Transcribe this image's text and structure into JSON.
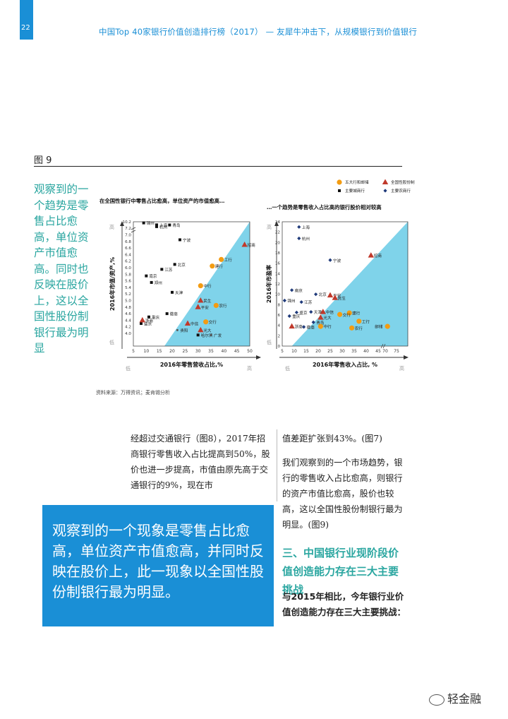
{
  "page": {
    "number": "22",
    "header": "中国Top 40家银行价值创造排行榜（2017） — 友犀牛冲击下，从规模银行到价值银行"
  },
  "figure": {
    "label": "图 9"
  },
  "side_quote": "观察到的一个趋势是零售占比愈高，单位资产市值愈高。同时也反映在股价上，这以全国性股份制银行最为明显",
  "chart_data": [
    {
      "type": "scatter",
      "title": "在全国性银行中零售占比愈高，单位资产的市值愈高…",
      "xlabel": "2016年零售营收占比,%",
      "ylabel": "2016年市值/资产,%",
      "xlim": [
        5,
        50
      ],
      "ylim": [
        3.8,
        10.2
      ],
      "x_ticks": [
        "5",
        "10",
        "15",
        "20",
        "25",
        "30",
        "35",
        "40",
        "45",
        "50"
      ],
      "y_ticks": [
        "4.0",
        "4.2",
        "4.4",
        "4.6",
        "4.8",
        "5.0",
        "5.2",
        "5.4",
        "5.6",
        "5.8",
        "6.0",
        "6.2",
        "6.4",
        "6.6",
        "6.8",
        "7.0",
        "7.2",
        "10.2"
      ],
      "low_label": "低",
      "high_label": "高",
      "points": [
        {
          "name": "锦州",
          "x": 9,
          "y": 10.0,
          "group": "urban"
        },
        {
          "name": "上海",
          "x": 14,
          "y": 9.65,
          "group": "urban"
        },
        {
          "name": "青岛",
          "x": 19,
          "y": 7.3,
          "group": "urban"
        },
        {
          "name": "杭州",
          "x": 14,
          "y": 7.25,
          "group": "urban"
        },
        {
          "name": "宁波",
          "x": 23,
          "y": 6.85,
          "group": "urban"
        },
        {
          "name": "北京",
          "x": 21,
          "y": 6.1,
          "group": "urban"
        },
        {
          "name": "江苏",
          "x": 16,
          "y": 5.95,
          "group": "urban"
        },
        {
          "name": "南京",
          "x": 10,
          "y": 5.75,
          "group": "urban"
        },
        {
          "name": "郑州",
          "x": 12,
          "y": 5.55,
          "group": "urban"
        },
        {
          "name": "天津",
          "x": 20,
          "y": 5.25,
          "group": "urban"
        },
        {
          "name": "徽商",
          "x": 18,
          "y": 4.6,
          "group": "urban"
        },
        {
          "name": "重庆",
          "x": 11,
          "y": 4.5,
          "group": "urban"
        },
        {
          "name": "盛京",
          "x": 8,
          "y": 4.3,
          "group": "urban"
        },
        {
          "name": "哈尔滨",
          "x": 30,
          "y": 3.95,
          "group": "urban"
        },
        {
          "name": "贵阳",
          "x": 22,
          "y": 4.1,
          "group": "city"
        },
        {
          "name": "招商",
          "x": 48,
          "y": 6.7,
          "group": "jointstock"
        },
        {
          "name": "民生",
          "x": 31,
          "y": 5.0,
          "group": "jointstock"
        },
        {
          "name": "平安",
          "x": 30,
          "y": 4.8,
          "group": "jointstock"
        },
        {
          "name": "中信",
          "x": 26,
          "y": 4.3,
          "group": "jointstock"
        },
        {
          "name": "光大",
          "x": 31,
          "y": 4.1,
          "group": "jointstock"
        },
        {
          "name": "浙商",
          "x": 8.5,
          "y": 4.4,
          "group": "jointstock"
        },
        {
          "name": "工行",
          "x": 39,
          "y": 6.25,
          "group": "big5"
        },
        {
          "name": "建行",
          "x": 35.5,
          "y": 6.05,
          "group": "big5"
        },
        {
          "name": "中行",
          "x": 31,
          "y": 5.45,
          "group": "big5"
        },
        {
          "name": "农行",
          "x": 37,
          "y": 4.85,
          "group": "big5"
        },
        {
          "name": "交行",
          "x": 33,
          "y": 4.35,
          "group": "big5"
        },
        {
          "name": "广发",
          "x": 35,
          "y": 3.95,
          "group": "other"
        }
      ]
    },
    {
      "type": "scatter",
      "title": "…一个趋势是零售收入占比高的银行股价相对较高",
      "xlabel": "2016年零售收入占比, %",
      "ylabel": "2016年市盈率",
      "xlim": [
        5,
        75
      ],
      "ylim": [
        0,
        24
      ],
      "x_ticks": [
        "5",
        "10",
        "15",
        "20",
        "25",
        "30",
        "35",
        "40",
        "45",
        "70",
        "75"
      ],
      "y_ticks": [
        "0",
        "2",
        "4",
        "6",
        "8",
        "10",
        "12",
        "14",
        "16",
        "18",
        "20",
        "22",
        "24"
      ],
      "low_label": "低",
      "high_label": "高",
      "legend": [
        {
          "label": "五大行和邮储",
          "group": "big5",
          "color": "#f39c12",
          "marker": "circle"
        },
        {
          "label": "全国性股份制",
          "group": "jointstock",
          "color": "#c0392b",
          "marker": "triangle"
        },
        {
          "label": "主要城商行",
          "group": "urban",
          "color": "#111111",
          "marker": "square"
        },
        {
          "label": "主要农商行",
          "group": "rural",
          "color": "#1f3a7a",
          "marker": "diamond"
        }
      ],
      "points": [
        {
          "name": "上海",
          "x": 12,
          "y": 23,
          "group": "rural"
        },
        {
          "name": "杭州",
          "x": 12,
          "y": 20.8,
          "group": "rural"
        },
        {
          "name": "宁波",
          "x": 25,
          "y": 16.6,
          "group": "rural"
        },
        {
          "name": "招商",
          "x": 42,
          "y": 17.5,
          "group": "jointstock"
        },
        {
          "name": "南京",
          "x": 9,
          "y": 10.8,
          "group": "rural"
        },
        {
          "name": "北京",
          "x": 19,
          "y": 10,
          "group": "rural"
        },
        {
          "name": "锦州",
          "x": 6,
          "y": 8.8,
          "group": "rural"
        },
        {
          "name": "平安",
          "x": 25,
          "y": 9.8,
          "group": "jointstock"
        },
        {
          "name": "民生",
          "x": 27,
          "y": 9.3,
          "group": "jointstock"
        },
        {
          "name": "江苏",
          "x": 13,
          "y": 8.5,
          "group": "rural"
        },
        {
          "name": "中信",
          "x": 22,
          "y": 6.6,
          "group": "jointstock"
        },
        {
          "name": "盛京",
          "x": 11,
          "y": 6.5,
          "group": "rural"
        },
        {
          "name": "天津",
          "x": 17,
          "y": 6.6,
          "group": "rural"
        },
        {
          "name": "重庆",
          "x": 8,
          "y": 5.8,
          "group": "rural"
        },
        {
          "name": "建行",
          "x": 33,
          "y": 6.4,
          "group": "big5"
        },
        {
          "name": "交行",
          "x": 29,
          "y": 6.1,
          "group": "big5"
        },
        {
          "name": "光大",
          "x": 21,
          "y": 5.5,
          "group": "jointstock"
        },
        {
          "name": "青岛",
          "x": 18,
          "y": 4.6,
          "group": "rural"
        },
        {
          "name": "浙商",
          "x": 9,
          "y": 3.8,
          "group": "jointstock"
        },
        {
          "name": "徽商",
          "x": 14,
          "y": 3.7,
          "group": "rural"
        },
        {
          "name": "工行",
          "x": 37,
          "y": 4.8,
          "group": "big5"
        },
        {
          "name": "中行",
          "x": 21,
          "y": 3.8,
          "group": "big5"
        },
        {
          "name": "农行",
          "x": 34,
          "y": 3.5,
          "group": "big5"
        },
        {
          "name": "邮储",
          "x": 71,
          "y": 3.8,
          "group": "big5"
        }
      ]
    }
  ],
  "source": "资料来源：万得资讯；麦肯锡分析",
  "body": {
    "left": "经超过交通银行（图8），2017年招商银行零售收入占比提高到50%，股价也进一步提高，市值由原先高于交通银行的9%，现在市",
    "right_p1": "值差距扩张到43%。(图7)",
    "right_p2": "我们观察到的一个市场趋势，银行的零售收入占比愈高，则银行的资产市值比愈高，股价也较高，这以全国性股份制银行最为明显。(图9)"
  },
  "highlight_box": "观察到的一个现象是零售占比愈高，单位资产市值愈高，并同时反映在股价上，此一现象以全国性股份制银行最为明显。",
  "section": {
    "title": "三、中国银行业现阶段价值创造能力存在三大主要挑战",
    "intro": "与2015年相比，今年银行业价值创造能力存在三大主要挑战："
  },
  "watermark": "轻金融",
  "colors": {
    "brand_blue": "#1a8fd6",
    "teal": "#2aa6a0",
    "chart_area": "#7fd3ea",
    "big5": "#f39c12",
    "jointstock": "#c0392b",
    "urban": "#111111",
    "rural": "#1f3a7a"
  }
}
